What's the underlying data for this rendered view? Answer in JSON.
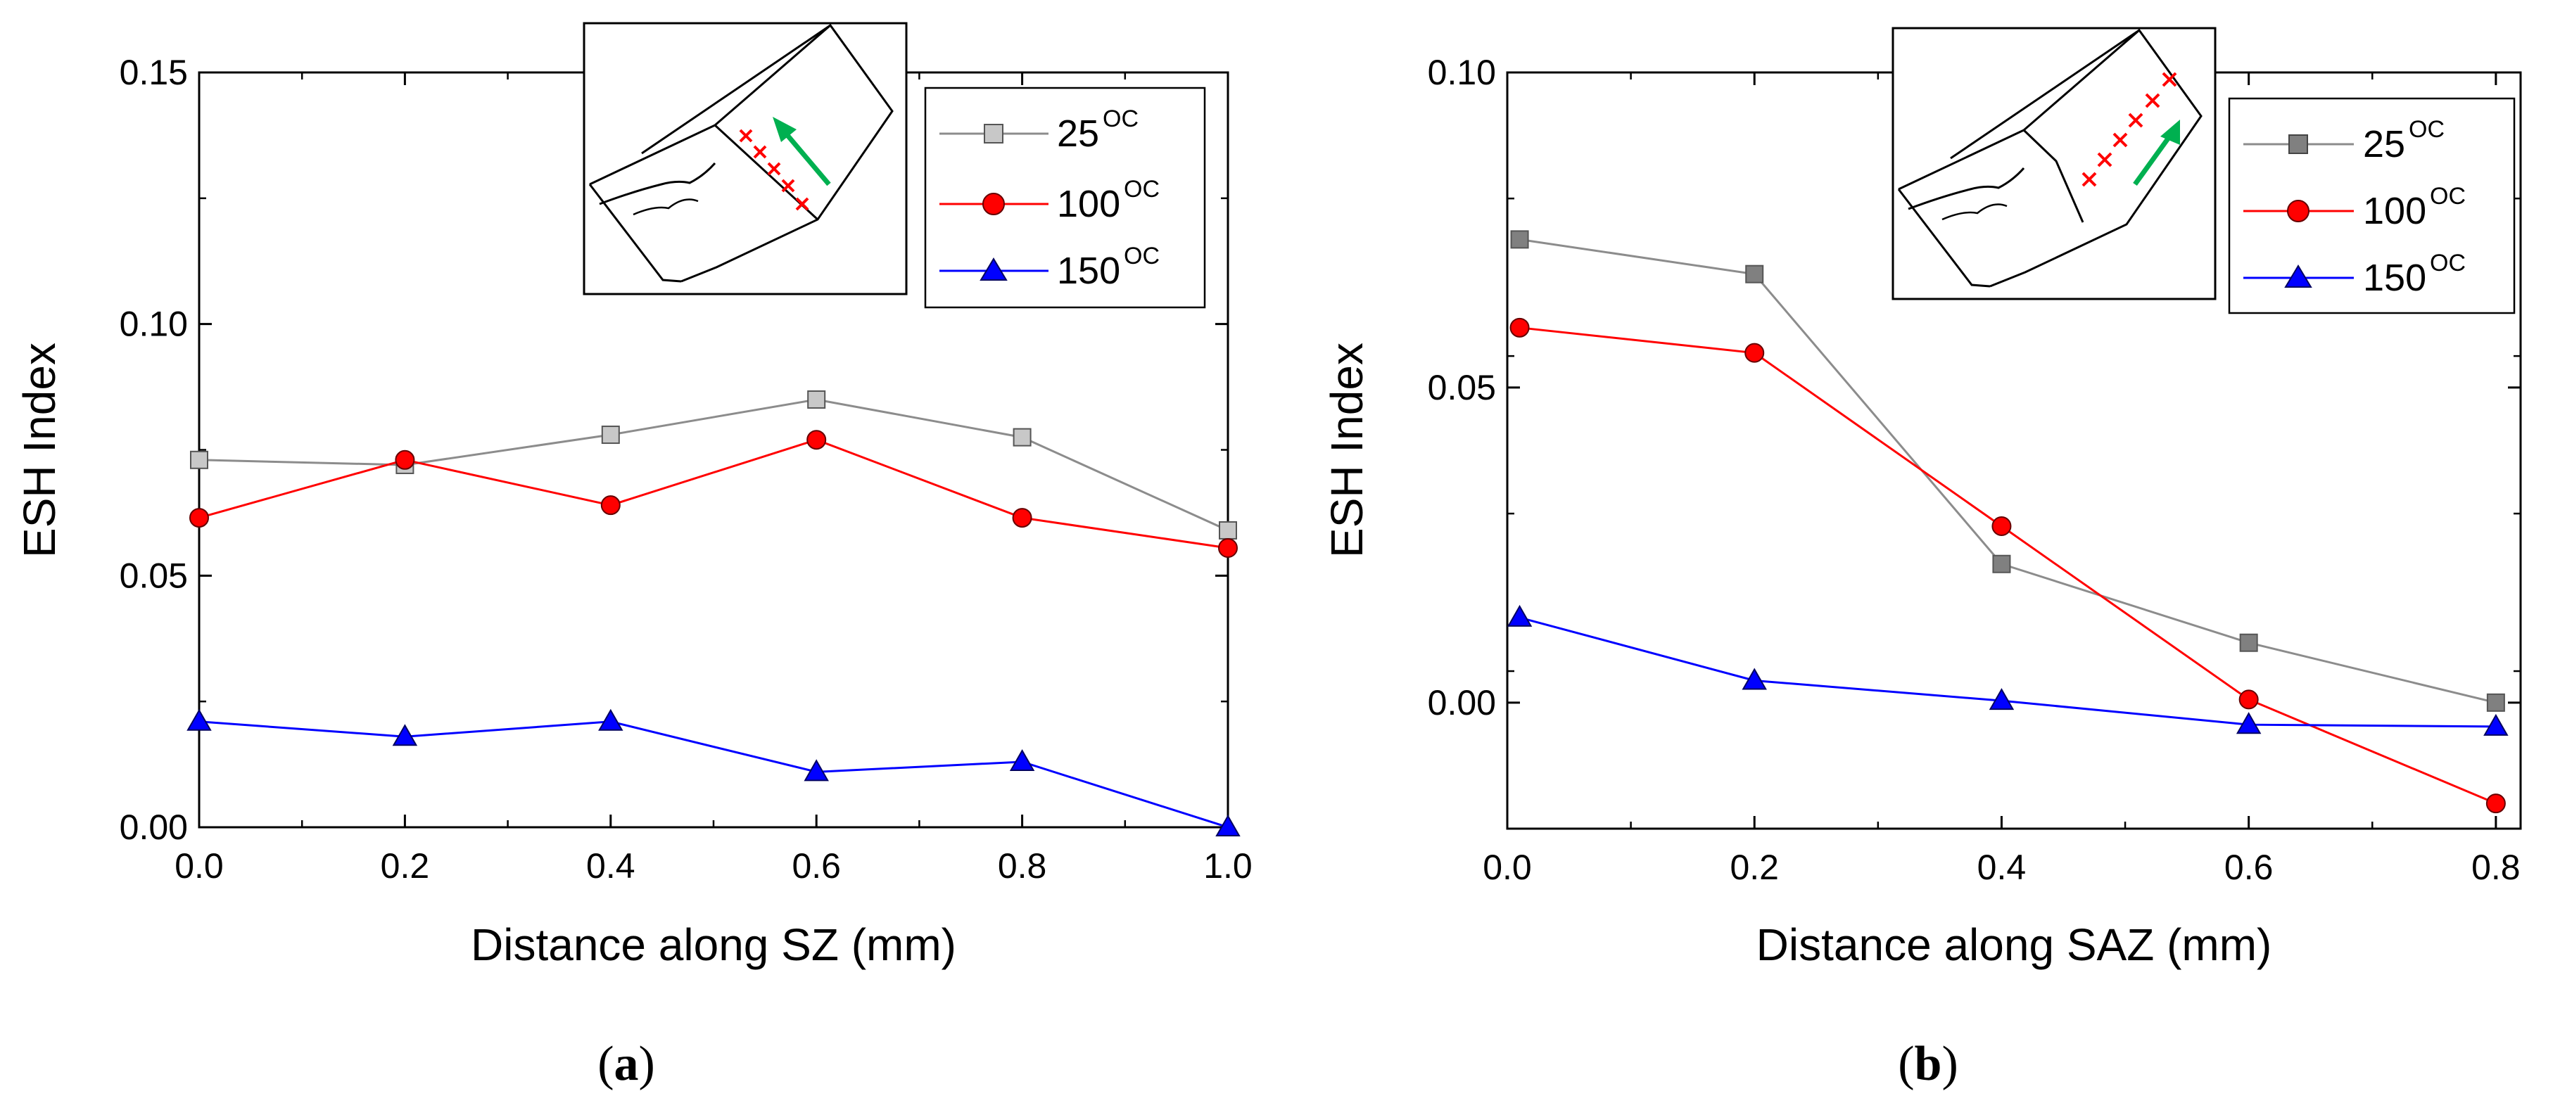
{
  "colors": {
    "series_25": "#8c8c8c",
    "series_25_fill_a": "#c8c8c8",
    "series_25_fill_b": "#808080",
    "series_100": "#ff0000",
    "series_150": "#0000ff",
    "arrow": "#00b050",
    "cross": "#ff0000"
  },
  "chart_data": [
    {
      "panel": "(a)",
      "type": "line",
      "xlabel": "Distance along SZ (mm)",
      "ylabel": "ESH Index",
      "xlim": [
        0.0,
        1.0
      ],
      "ylim": [
        0.0,
        0.15
      ],
      "xticks": [
        0.0,
        0.2,
        0.4,
        0.6,
        0.8,
        1.0
      ],
      "xtick_labels": [
        "0.0",
        "0.2",
        "0.4",
        "0.6",
        "0.8",
        "1.0"
      ],
      "yticks": [
        0.0,
        0.05,
        0.1,
        0.15
      ],
      "ytick_labels": [
        "0.00",
        "0.05",
        "0.10",
        "0.15"
      ],
      "legend_position": "top-right",
      "series": [
        {
          "name": "25",
          "unit": "OC",
          "marker": "square",
          "x": [
            0.0,
            0.2,
            0.4,
            0.6,
            0.8,
            1.0
          ],
          "values": [
            0.073,
            0.072,
            0.078,
            0.085,
            0.0775,
            0.059
          ]
        },
        {
          "name": "100",
          "unit": "OC",
          "marker": "circle",
          "x": [
            0.0,
            0.2,
            0.4,
            0.6,
            0.8,
            1.0
          ],
          "values": [
            0.0615,
            0.073,
            0.064,
            0.077,
            0.0615,
            0.0555
          ]
        },
        {
          "name": "150",
          "unit": "OC",
          "marker": "triangle",
          "x": [
            0.0,
            0.2,
            0.4,
            0.6,
            0.8,
            1.0
          ],
          "values": [
            0.021,
            0.018,
            0.021,
            0.011,
            0.013,
            0.0
          ]
        }
      ]
    },
    {
      "panel": "(b)",
      "type": "line",
      "xlabel": "Distance along SAZ (mm)",
      "ylabel": "ESH Index",
      "xlim": [
        0.0,
        0.82
      ],
      "ylim": [
        -0.02,
        0.1
      ],
      "xticks": [
        0.0,
        0.2,
        0.4,
        0.6,
        0.8
      ],
      "xtick_labels": [
        "0.0",
        "0.2",
        "0.4",
        "0.6",
        "0.8"
      ],
      "yticks": [
        0.0,
        0.05,
        0.1
      ],
      "ytick_labels": [
        "0.00",
        "0.05",
        "0.10"
      ],
      "legend_position": "top-right",
      "series": [
        {
          "name": "25",
          "unit": "OC",
          "marker": "square",
          "x": [
            0.01,
            0.2,
            0.4,
            0.6,
            0.8
          ],
          "values": [
            0.0735,
            0.068,
            0.022,
            0.0095,
            0.0
          ]
        },
        {
          "name": "100",
          "unit": "OC",
          "marker": "circle",
          "x": [
            0.01,
            0.2,
            0.4,
            0.6,
            0.8
          ],
          "values": [
            0.0595,
            0.0555,
            0.028,
            0.0005,
            -0.016
          ]
        },
        {
          "name": "150",
          "unit": "OC",
          "marker": "triangle",
          "x": [
            0.01,
            0.2,
            0.4,
            0.6,
            0.8
          ],
          "values": [
            0.0135,
            0.0035,
            0.0003,
            -0.0035,
            -0.0038
          ]
        }
      ]
    }
  ]
}
